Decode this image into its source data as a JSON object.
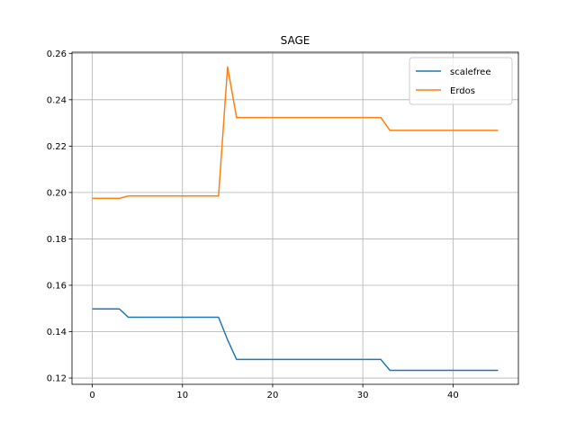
{
  "chart_data": {
    "type": "line",
    "title": "SAGE",
    "xlabel": "",
    "ylabel": "",
    "xlim": [
      -2.25,
      47.25
    ],
    "ylim": [
      0.1173,
      0.2605
    ],
    "xticks": [
      0,
      10,
      20,
      30,
      40
    ],
    "yticks": [
      0.12,
      0.14,
      0.16,
      0.18,
      0.2,
      0.22,
      0.24,
      0.26
    ],
    "ytick_labels": [
      "0.12",
      "0.14",
      "0.16",
      "0.18",
      "0.20",
      "0.22",
      "0.24",
      "0.26"
    ],
    "grid": true,
    "legend_position": "upper right",
    "series": [
      {
        "name": "scalefree",
        "color": "#1f77b4",
        "x": [
          0,
          3,
          4,
          14,
          15,
          16,
          32,
          33,
          45
        ],
        "y": [
          0.1498,
          0.1498,
          0.1462,
          0.1462,
          0.1365,
          0.128,
          0.128,
          0.1233,
          0.1233
        ]
      },
      {
        "name": "Erdos",
        "color": "#ff7f0e",
        "x": [
          0,
          3,
          4,
          14,
          15,
          16,
          32,
          33,
          45
        ],
        "y": [
          0.1975,
          0.1975,
          0.1985,
          0.1985,
          0.2541,
          0.2323,
          0.2323,
          0.2268,
          0.2268
        ]
      }
    ]
  }
}
